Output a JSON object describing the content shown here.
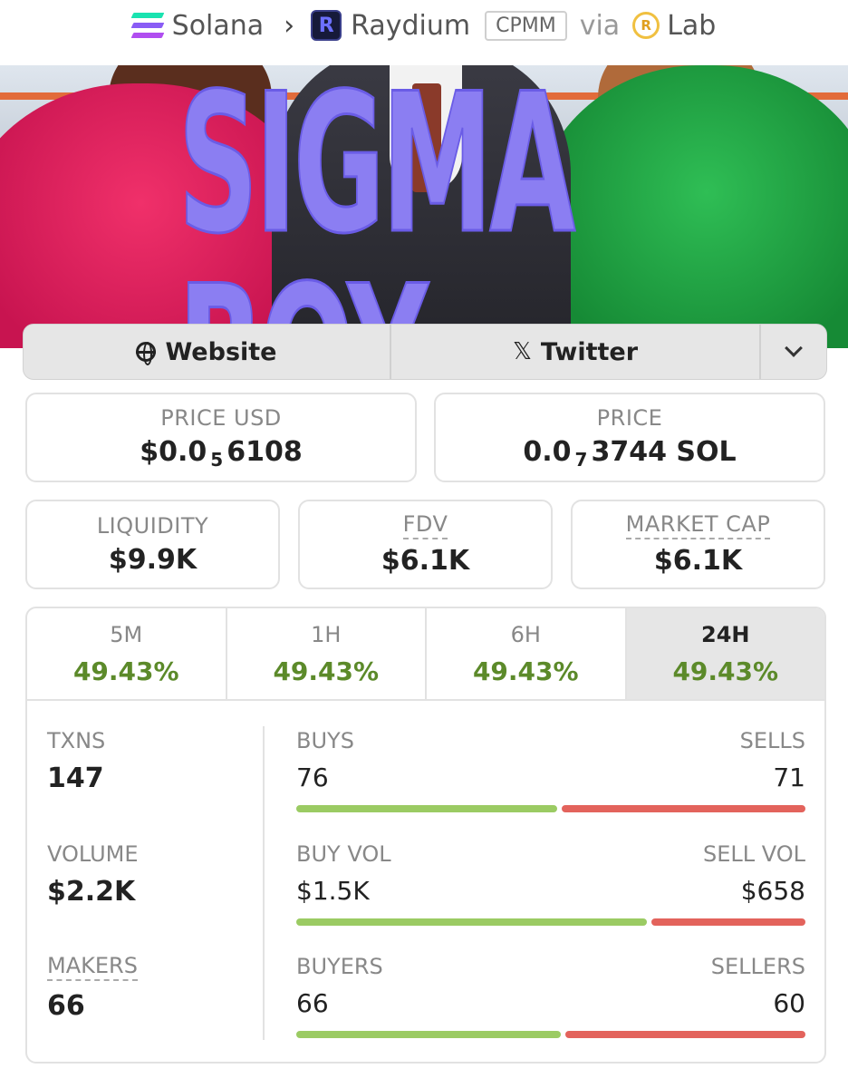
{
  "breadcrumb": {
    "chain": "Solana",
    "dex": "Raydium",
    "pool_type": "CPMM",
    "via": "via",
    "launchpad": "Lab"
  },
  "banner": {
    "title": "SIGMA BOY"
  },
  "links": {
    "website": "Website",
    "twitter": "Twitter"
  },
  "price_usd": {
    "label": "PRICE USD",
    "prefix": "$0.0",
    "zeros": "5",
    "digits": "6108"
  },
  "price": {
    "label": "PRICE",
    "prefix": "0.0",
    "zeros": "7",
    "digits": "3744 SOL"
  },
  "liquidity": {
    "label": "LIQUIDITY",
    "value": "$9.9K"
  },
  "fdv": {
    "label": "FDV",
    "value": "$6.1K"
  },
  "market_cap": {
    "label": "MARKET CAP",
    "value": "$6.1K"
  },
  "tabs": [
    {
      "label": "5M",
      "value": "49.43%"
    },
    {
      "label": "1H",
      "value": "49.43%"
    },
    {
      "label": "6H",
      "value": "49.43%"
    },
    {
      "label": "24H",
      "value": "49.43%"
    }
  ],
  "stats": {
    "txns": {
      "label": "TXNS",
      "value": "147"
    },
    "volume": {
      "label": "VOLUME",
      "value": "$2.2K"
    },
    "makers": {
      "label": "MAKERS",
      "value": "66"
    },
    "buys": {
      "label": "BUYS",
      "value": "76"
    },
    "sells": {
      "label": "SELLS",
      "value": "71"
    },
    "buy_vol": {
      "label": "BUY VOL",
      "value": "$1.5K"
    },
    "sell_vol": {
      "label": "SELL VOL",
      "value": "$658"
    },
    "buyers": {
      "label": "BUYERS",
      "value": "66"
    },
    "sellers": {
      "label": "SELLERS",
      "value": "60"
    }
  },
  "bars": {
    "buys_sells": [
      76,
      71
    ],
    "vol": [
      1500,
      658
    ],
    "buyers_sellers": [
      66,
      60
    ]
  },
  "colors": {
    "positive": "#5c8a2a",
    "buy_bar": "#9bcb63",
    "sell_bar": "#e3635c"
  }
}
